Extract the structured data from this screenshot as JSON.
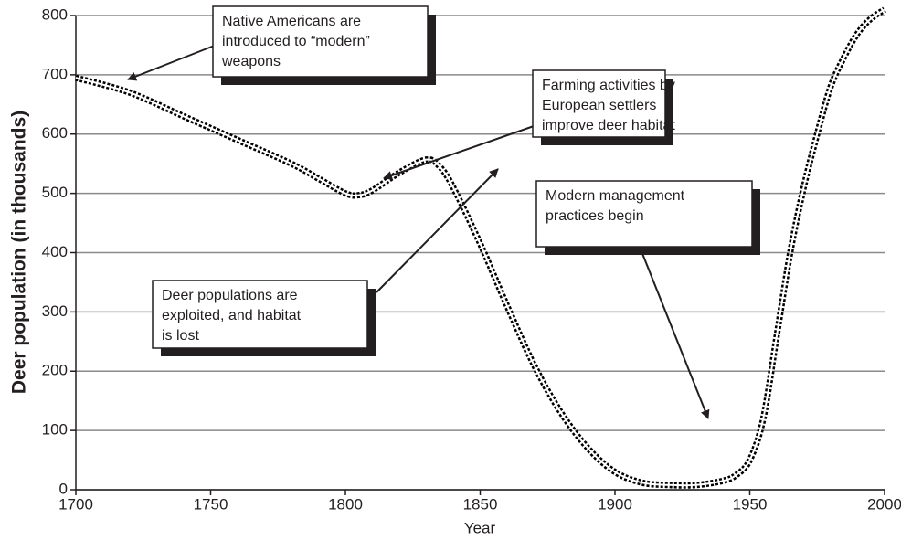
{
  "chart_data": {
    "type": "line",
    "xlabel": "Year",
    "ylabel": "Deer population (in thousands)",
    "x": [
      1700,
      1720,
      1740,
      1760,
      1780,
      1790,
      1800,
      1805,
      1810,
      1820,
      1830,
      1835,
      1840,
      1850,
      1860,
      1870,
      1880,
      1890,
      1900,
      1910,
      1920,
      1930,
      1940,
      1945,
      1950,
      1955,
      1960,
      1965,
      1970,
      1975,
      1980,
      1985,
      1990,
      1995,
      2000
    ],
    "series": [
      {
        "color": "#000000",
        "values": [
          695,
          670,
          630,
          590,
          550,
          525,
          500,
          497,
          505,
          535,
          557,
          545,
          510,
          415,
          310,
          210,
          130,
          70,
          30,
          12,
          8,
          8,
          15,
          25,
          50,
          120,
          260,
          400,
          510,
          600,
          680,
          730,
          770,
          795,
          810
        ]
      }
    ],
    "xlim": [
      1700,
      2000
    ],
    "xticks": [
      1700,
      1750,
      1800,
      1850,
      1900,
      1950,
      2000
    ],
    "ylim": [
      0,
      800
    ],
    "yticks": [
      0,
      100,
      200,
      300,
      400,
      500,
      600,
      700,
      800
    ],
    "grid": true,
    "annotations": [
      {
        "lines": [
          "Native Americans are",
          "introduced to “modern”",
          "weapons"
        ]
      },
      {
        "lines": [
          "Farming activities by",
          "European settlers",
          "improve deer habitat"
        ]
      },
      {
        "lines": [
          "Modern management",
          "practices begin"
        ]
      },
      {
        "lines": [
          "Deer populations are",
          "exploited, and habitat",
          "is lost"
        ]
      }
    ]
  }
}
